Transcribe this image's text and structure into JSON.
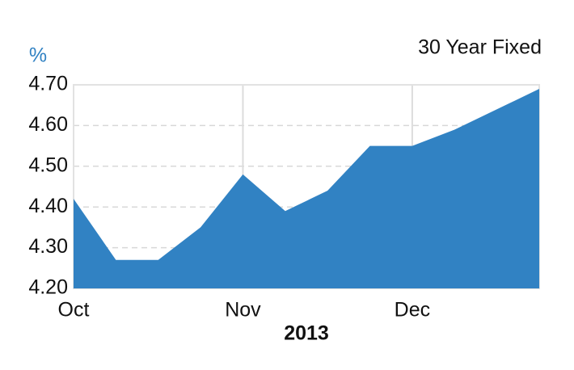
{
  "chart_data": {
    "type": "area",
    "title": "30 Year Fixed",
    "y_unit": "%",
    "x_label": "2013",
    "categories": [
      "Oct",
      null,
      null,
      null,
      "Nov",
      null,
      null,
      null,
      "Dec",
      null,
      null,
      null
    ],
    "values": [
      4.42,
      4.27,
      4.27,
      4.35,
      4.48,
      4.39,
      4.44,
      4.55,
      4.55,
      4.59,
      4.64,
      4.69
    ],
    "color": "#3182c3",
    "ylim": [
      4.2,
      4.7
    ],
    "yticks": [
      {
        "value": 4.2,
        "label": "4.20"
      },
      {
        "value": 4.3,
        "label": "4.30"
      },
      {
        "value": 4.4,
        "label": "4.40"
      },
      {
        "value": 4.5,
        "label": "4.50"
      },
      {
        "value": 4.6,
        "label": "4.60"
      },
      {
        "value": 4.7,
        "label": "4.70"
      }
    ],
    "grid": true
  }
}
